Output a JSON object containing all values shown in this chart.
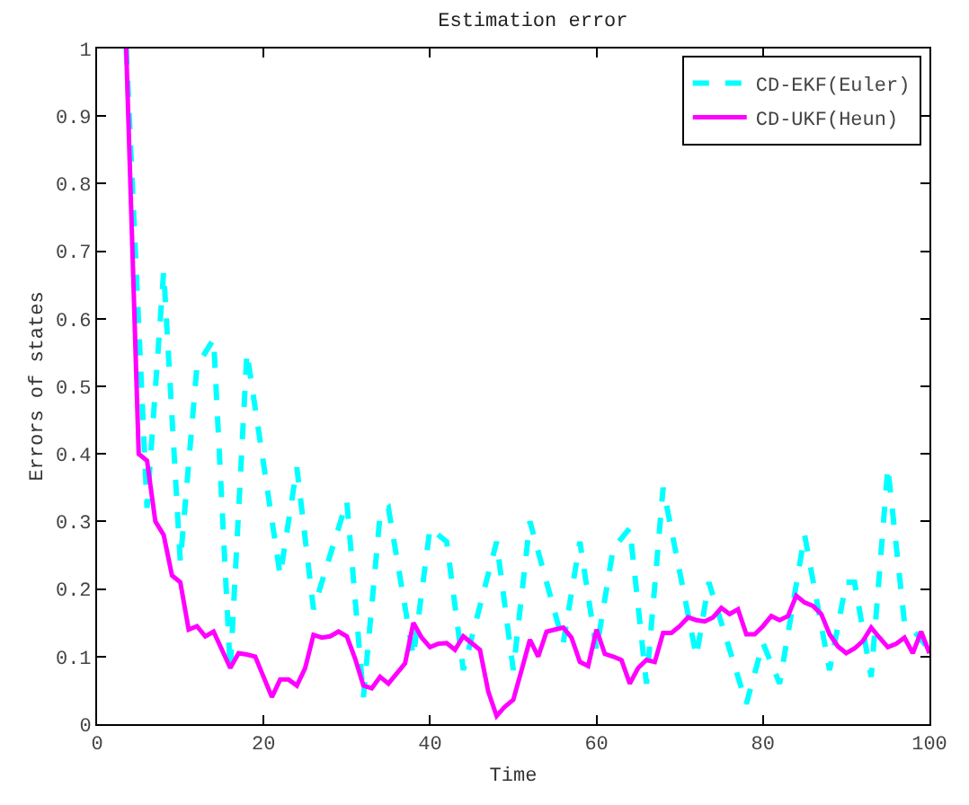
{
  "chart_data": {
    "type": "line",
    "title": "Estimation error",
    "xlabel": "Time",
    "ylabel": "Errors of states",
    "xlim": [
      0,
      100
    ],
    "xticks": [
      0,
      20,
      40,
      60,
      80,
      100
    ],
    "ylim": [
      0,
      1
    ],
    "yticks": [
      0,
      0.1,
      0.2,
      0.3,
      0.4,
      0.5,
      0.6,
      0.7,
      0.8,
      0.9,
      1
    ],
    "legend": "top right",
    "series": [
      {
        "name": "CD-EKF(Euler)",
        "color": "#00ffff",
        "line_style": "dashed",
        "x": [
          3.5,
          6,
          8,
          10,
          12,
          14,
          16,
          18,
          22,
          24,
          26,
          30,
          32,
          34,
          35,
          38,
          40,
          42,
          44,
          48,
          50,
          52,
          56,
          58,
          60,
          62,
          64,
          66,
          68,
          72,
          73.5,
          78,
          80,
          82,
          85,
          88,
          90,
          91,
          93,
          95,
          97,
          98,
          100
        ],
        "values": [
          1.0,
          0.32,
          0.67,
          0.24,
          0.53,
          0.57,
          0.08,
          0.55,
          0.22,
          0.38,
          0.17,
          0.33,
          0.04,
          0.31,
          0.32,
          0.1,
          0.29,
          0.27,
          0.08,
          0.27,
          0.08,
          0.3,
          0.12,
          0.27,
          0.11,
          0.26,
          0.29,
          0.06,
          0.35,
          0.1,
          0.21,
          0.03,
          0.12,
          0.06,
          0.28,
          0.08,
          0.21,
          0.21,
          0.07,
          0.38,
          0.15,
          0.14,
          0.11
        ]
      },
      {
        "name": "CD-UKF(Heun)",
        "color": "#ff00ff",
        "line_style": "solid",
        "x": [
          3.5,
          5,
          6,
          7,
          8,
          9,
          10,
          11,
          12,
          13,
          14,
          15,
          16,
          17,
          18,
          19,
          20,
          21,
          22,
          23,
          24,
          25,
          26,
          27,
          28,
          29,
          30,
          31,
          32,
          33,
          34,
          35,
          36,
          37,
          38,
          39,
          40,
          41,
          42,
          43,
          44,
          45,
          46,
          47,
          48,
          49,
          50,
          51,
          52,
          53,
          54,
          55,
          56,
          57,
          58,
          59,
          60,
          61,
          62,
          63,
          64,
          65,
          66,
          67,
          68,
          69,
          70,
          71,
          72,
          73,
          74,
          75,
          76,
          77,
          78,
          79,
          80,
          81,
          82,
          83,
          84,
          85,
          86,
          87,
          88,
          89,
          90,
          91,
          92,
          93,
          94,
          95,
          96,
          97,
          98,
          99,
          100
        ],
        "values": [
          1.0,
          0.4,
          0.39,
          0.3,
          0.28,
          0.22,
          0.21,
          0.14,
          0.145,
          0.13,
          0.137,
          0.11,
          0.083,
          0.105,
          0.103,
          0.1,
          0.07,
          0.04,
          0.066,
          0.066,
          0.057,
          0.083,
          0.132,
          0.128,
          0.13,
          0.137,
          0.13,
          0.097,
          0.057,
          0.053,
          0.07,
          0.06,
          0.075,
          0.09,
          0.15,
          0.128,
          0.114,
          0.119,
          0.12,
          0.11,
          0.13,
          0.12,
          0.11,
          0.048,
          0.012,
          0.026,
          0.036,
          0.08,
          0.125,
          0.1,
          0.137,
          0.14,
          0.143,
          0.128,
          0.092,
          0.086,
          0.14,
          0.104,
          0.1,
          0.095,
          0.06,
          0.083,
          0.095,
          0.092,
          0.135,
          0.135,
          0.145,
          0.158,
          0.154,
          0.152,
          0.158,
          0.172,
          0.163,
          0.17,
          0.133,
          0.133,
          0.145,
          0.16,
          0.154,
          0.16,
          0.19,
          0.18,
          0.175,
          0.163,
          0.133,
          0.115,
          0.105,
          0.112,
          0.123,
          0.143,
          0.128,
          0.114,
          0.119,
          0.128,
          0.105,
          0.137,
          0.105
        ]
      }
    ]
  }
}
